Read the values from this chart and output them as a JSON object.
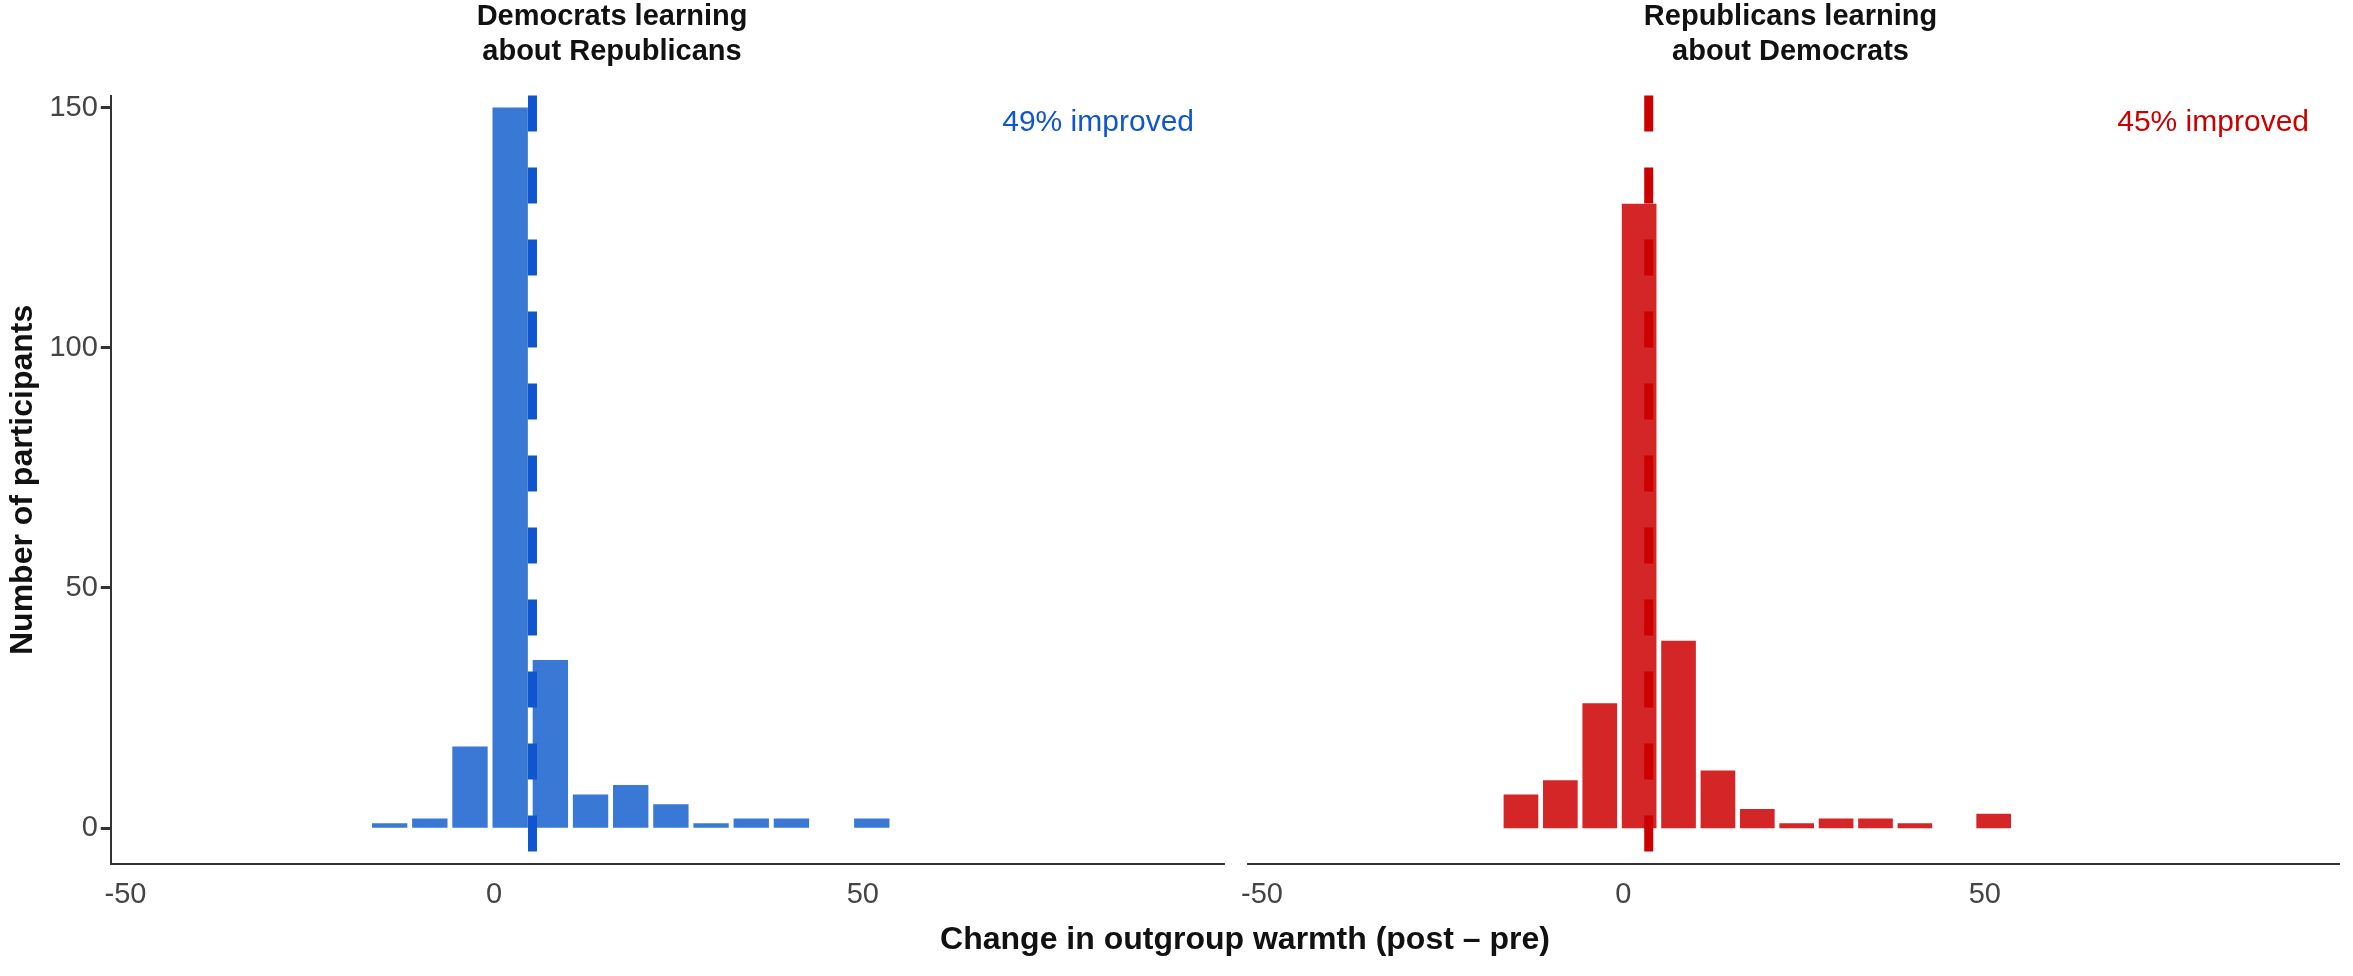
{
  "chart_data": [
    {
      "type": "histogram",
      "title": "Democrats learning\nabout Republicans",
      "xlabel": "Change in outgroup warmth (post – pre)",
      "ylabel": "Number of participants",
      "bins": [
        -16.9,
        -11.45,
        -6,
        -0.55,
        4.9,
        10.35,
        15.8,
        21.25,
        26.7,
        32.15,
        37.6,
        43.05,
        48.5,
        53.95
      ],
      "values": [
        1,
        2,
        17,
        150,
        35,
        7,
        9,
        5,
        1,
        2,
        2,
        0,
        2
      ],
      "color": "#3a78d6",
      "xlim": [
        -52,
        99
      ],
      "xticks": [
        -50,
        0,
        50
      ],
      "ylim": [
        -7.5,
        152.5
      ],
      "yticks": [
        0,
        50,
        100,
        150
      ],
      "grid": false,
      "ref_lines": [
        {
          "axis": "x",
          "value": 5.2,
          "color": "#1055d0",
          "line_style": "dashed"
        }
      ],
      "annotations": [
        "49% improved"
      ]
    },
    {
      "type": "histogram",
      "title": "Republicans learning\nabout Democrats",
      "bins": [
        -16.9,
        -11.45,
        -6,
        -0.55,
        4.9,
        10.35,
        15.8,
        21.25,
        26.7,
        32.15,
        37.6,
        43.05,
        48.5,
        53.95
      ],
      "values": [
        7,
        10,
        26,
        130,
        39,
        12,
        4,
        1,
        2,
        2,
        1,
        0,
        3
      ],
      "color": "#d42626",
      "xlim": [
        -52,
        99
      ],
      "xticks": [
        -50,
        0,
        50
      ],
      "ylim": [
        -7.5,
        152.5
      ],
      "yticks": [
        0,
        50,
        100,
        150
      ],
      "grid": false,
      "tick_labels": "x",
      "ref_lines": [
        {
          "axis": "x",
          "value": 3.5,
          "color": "#cc0000",
          "line_style": "dashed"
        }
      ],
      "annotations": [
        "45% improved"
      ]
    }
  ]
}
